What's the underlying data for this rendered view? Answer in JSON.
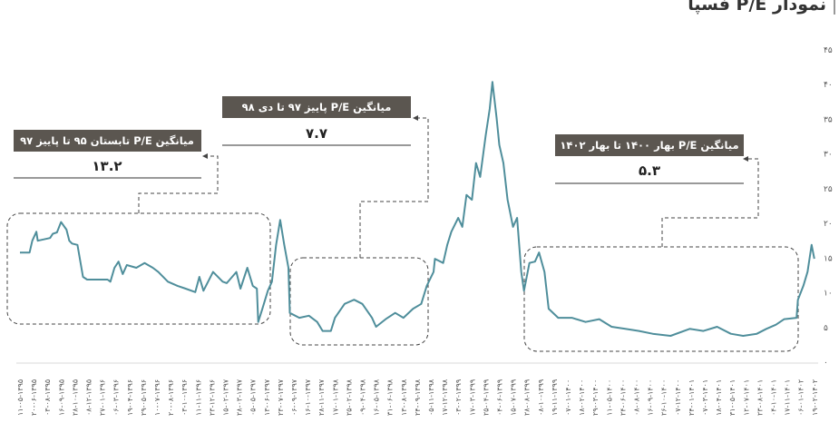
{
  "chart_data": {
    "type": "line",
    "title": "نمودار P/E فسپا",
    "xlabel": "",
    "ylabel": "",
    "ylim": [
      0,
      45
    ],
    "yticks": [
      "۰",
      "۵",
      "۱۰",
      "۱۵",
      "۲۰",
      "۲۵",
      "۳۰",
      "۳۵",
      "۴۰",
      "۴۵"
    ],
    "ytick_values": [
      0,
      5,
      10,
      15,
      20,
      25,
      30,
      35,
      40,
      45
    ],
    "grid": false,
    "line_color": "#4f8e9b",
    "x_labels": [
      "۱۱-۰۵-۱۳۹۵",
      "۲۰-۰۶-۱۳۹۵",
      "۰۳-۰۸-۱۳۹۵",
      "۱۶-۰۹-۱۳۹۵",
      "۲۸-۱۰-۱۳۹۵",
      "۰۸-۱۲-۱۳۹۵",
      "۲۷-۰۱-۱۳۹۶",
      "۰۶-۰۳-۱۳۹۶",
      "۱۹-۰۴-۱۳۹۶",
      "۲۹-۰۵-۱۳۹۶",
      "۱۰-۰۷-۱۳۹۶",
      "۲۰-۰۸-۱۳۹۶",
      "۰۳-۱۰-۱۳۹۶",
      "۱۱-۱۱-۱۳۹۶",
      "۲۳-۱۲-۱۳۹۶",
      "۱۵-۰۲-۱۳۹۷",
      "۲۸-۰۳-۱۳۹۷",
      "۰۵-۰۵-۱۳۹۷",
      "۱۳-۰۶-۱۳۹۷",
      "۲۳-۰۷-۱۳۹۷",
      "۰۶-۰۹-۱۳۹۷",
      "۱۶-۱۰-۱۳۹۷",
      "۲۸-۱۱-۱۳۹۷",
      "۱۷-۰۱-۱۳۹۸",
      "۲۵-۰۲-۱۳۹۸",
      "۰۹-۰۴-۱۳۹۸",
      "۱۶-۰۵-۱۳۹۸",
      "۳۱-۰۶-۱۳۹۸",
      "۱۳-۰۸-۱۳۹۸",
      "۲۴-۰۹-۱۳۹۸",
      "۰۵-۱۱-۱۳۹۸",
      "۱۷-۱۲-۱۳۹۸",
      "۰۳-۰۲-۱۳۹۹",
      "۱۷-۰۳-۱۳۹۹",
      "۲۵-۰۴-۱۳۹۹",
      "۰۴-۰۶-۱۳۹۹",
      "۱۵-۰۷-۱۳۹۹",
      "۲۸-۰۸-۱۳۹۹",
      "۰۸-۱۰-۱۳۹۹",
      "۱۹-۱۱-۱۳۹۹",
      "۰۷-۰۱-۱۴۰۰",
      "۱۸-۰۲-۱۴۰۰",
      "۲۹-۰۳-۱۴۰۰",
      "۱۱-۰۵-۱۴۰۰",
      "۲۴-۰۶-۱۴۰۰",
      "۰۸-۰۸-۱۴۰۰",
      "۱۶-۰۹-۱۴۰۰",
      "۲۶-۱۰-۱۴۰۰",
      "۰۷-۱۲-۱۴۰۰",
      "۲۴-۰۱-۱۴۰۱",
      "۰۷-۰۳-۱۴۰۱",
      "۱۸-۰۴-۱۴۰۱",
      "۳۱-۰۵-۱۴۰۱",
      "۱۲-۰۷-۱۴۰۱",
      "۲۳-۰۸-۱۴۰۱",
      "۰۴-۱۰-۱۴۰۱",
      "۱۷-۱۱-۱۴۰۱",
      "۰۶-۰۱-۱۴۰۲",
      "۱۹-۰۲-۱۴۰۲"
    ],
    "series": [
      {
        "name": "P/E",
        "points": [
          [
            0,
            15.8
          ],
          [
            0.7,
            15.8
          ],
          [
            0.9,
            17.5
          ],
          [
            1.2,
            18.8
          ],
          [
            1.3,
            17.5
          ],
          [
            2.2,
            17.9
          ],
          [
            2.4,
            18.5
          ],
          [
            2.7,
            18.7
          ],
          [
            3.0,
            20.2
          ],
          [
            3.4,
            19.1
          ],
          [
            3.6,
            17.5
          ],
          [
            3.8,
            17.1
          ],
          [
            4.2,
            16.9
          ],
          [
            4.6,
            12.3
          ],
          [
            4.9,
            11.9
          ],
          [
            6.4,
            11.9
          ],
          [
            6.6,
            11.6
          ],
          [
            6.9,
            13.6
          ],
          [
            7.2,
            14.5
          ],
          [
            7.5,
            12.7
          ],
          [
            7.8,
            14.0
          ],
          [
            8.5,
            13.6
          ],
          [
            9.1,
            14.3
          ],
          [
            9.7,
            13.6
          ],
          [
            10.1,
            13.0
          ],
          [
            10.8,
            11.6
          ],
          [
            11.5,
            11.0
          ],
          [
            12.1,
            10.6
          ],
          [
            12.8,
            10.1
          ],
          [
            13.1,
            12.3
          ],
          [
            13.4,
            10.3
          ],
          [
            14.1,
            13.0
          ],
          [
            14.8,
            11.6
          ],
          [
            15.1,
            11.4
          ],
          [
            15.8,
            13.0
          ],
          [
            16.1,
            10.6
          ],
          [
            16.6,
            13.6
          ],
          [
            17.0,
            11.0
          ],
          [
            17.3,
            10.6
          ],
          [
            17.4,
            5.8
          ],
          [
            17.7,
            7.7
          ],
          [
            18.1,
            10.3
          ],
          [
            18.4,
            11.6
          ],
          [
            18.7,
            16.9
          ],
          [
            19.0,
            20.5
          ],
          [
            19.3,
            16.9
          ],
          [
            19.6,
            13.6
          ],
          [
            19.7,
            7.1
          ],
          [
            20.4,
            6.4
          ],
          [
            21.1,
            6.7
          ],
          [
            21.7,
            5.8
          ],
          [
            22.1,
            4.5
          ],
          [
            22.7,
            4.5
          ],
          [
            23.0,
            6.4
          ],
          [
            23.7,
            8.4
          ],
          [
            24.4,
            9.0
          ],
          [
            25.0,
            8.4
          ],
          [
            25.7,
            6.4
          ],
          [
            26.0,
            5.1
          ],
          [
            26.7,
            6.2
          ],
          [
            27.4,
            7.1
          ],
          [
            28.0,
            6.4
          ],
          [
            28.7,
            7.7
          ],
          [
            29.3,
            8.4
          ],
          [
            29.7,
            11.0
          ],
          [
            30.2,
            13.0
          ],
          [
            30.3,
            14.9
          ],
          [
            30.9,
            14.3
          ],
          [
            31.2,
            16.9
          ],
          [
            31.5,
            18.8
          ],
          [
            32.0,
            20.8
          ],
          [
            32.3,
            19.5
          ],
          [
            32.6,
            24.1
          ],
          [
            33.0,
            23.4
          ],
          [
            33.3,
            28.7
          ],
          [
            33.6,
            26.7
          ],
          [
            34.0,
            32.6
          ],
          [
            34.3,
            36.5
          ],
          [
            34.5,
            40.4
          ],
          [
            34.8,
            35.2
          ],
          [
            35.0,
            31.3
          ],
          [
            35.3,
            28.7
          ],
          [
            35.6,
            23.4
          ],
          [
            36.0,
            19.5
          ],
          [
            36.3,
            20.8
          ],
          [
            36.6,
            13.0
          ],
          [
            36.8,
            10.3
          ],
          [
            37.2,
            14.3
          ],
          [
            37.6,
            14.5
          ],
          [
            37.9,
            15.8
          ],
          [
            38.3,
            13.0
          ],
          [
            38.6,
            7.7
          ],
          [
            39.3,
            6.4
          ],
          [
            40.3,
            6.4
          ],
          [
            41.3,
            5.8
          ],
          [
            42.3,
            6.2
          ],
          [
            43.2,
            5.1
          ],
          [
            44.2,
            4.8
          ],
          [
            45.2,
            4.5
          ],
          [
            46.2,
            4.1
          ],
          [
            47.5,
            3.8
          ],
          [
            48.9,
            4.8
          ],
          [
            49.9,
            4.5
          ],
          [
            50.9,
            5.1
          ],
          [
            51.9,
            4.1
          ],
          [
            52.8,
            3.8
          ],
          [
            53.8,
            4.1
          ],
          [
            54.5,
            4.8
          ],
          [
            55.2,
            5.4
          ],
          [
            55.8,
            6.2
          ],
          [
            56.7,
            6.4
          ],
          [
            56.8,
            9.0
          ],
          [
            57.2,
            11.0
          ],
          [
            57.5,
            13.0
          ],
          [
            57.8,
            16.9
          ],
          [
            58.0,
            14.9
          ]
        ]
      }
    ],
    "annotations": [
      {
        "label": "میانگین P/E تابستان ۹۵ تا پاییز ۹۷",
        "value": "۱۳.۲"
      },
      {
        "label": "میانگین P/E پاییز ۹۷ تا دی ۹۸",
        "value": "۷.۷"
      },
      {
        "label": "میانگین P/E بهار ۱۴۰۰ تا بهار ۱۴۰۲",
        "value": "۵.۳"
      }
    ]
  }
}
